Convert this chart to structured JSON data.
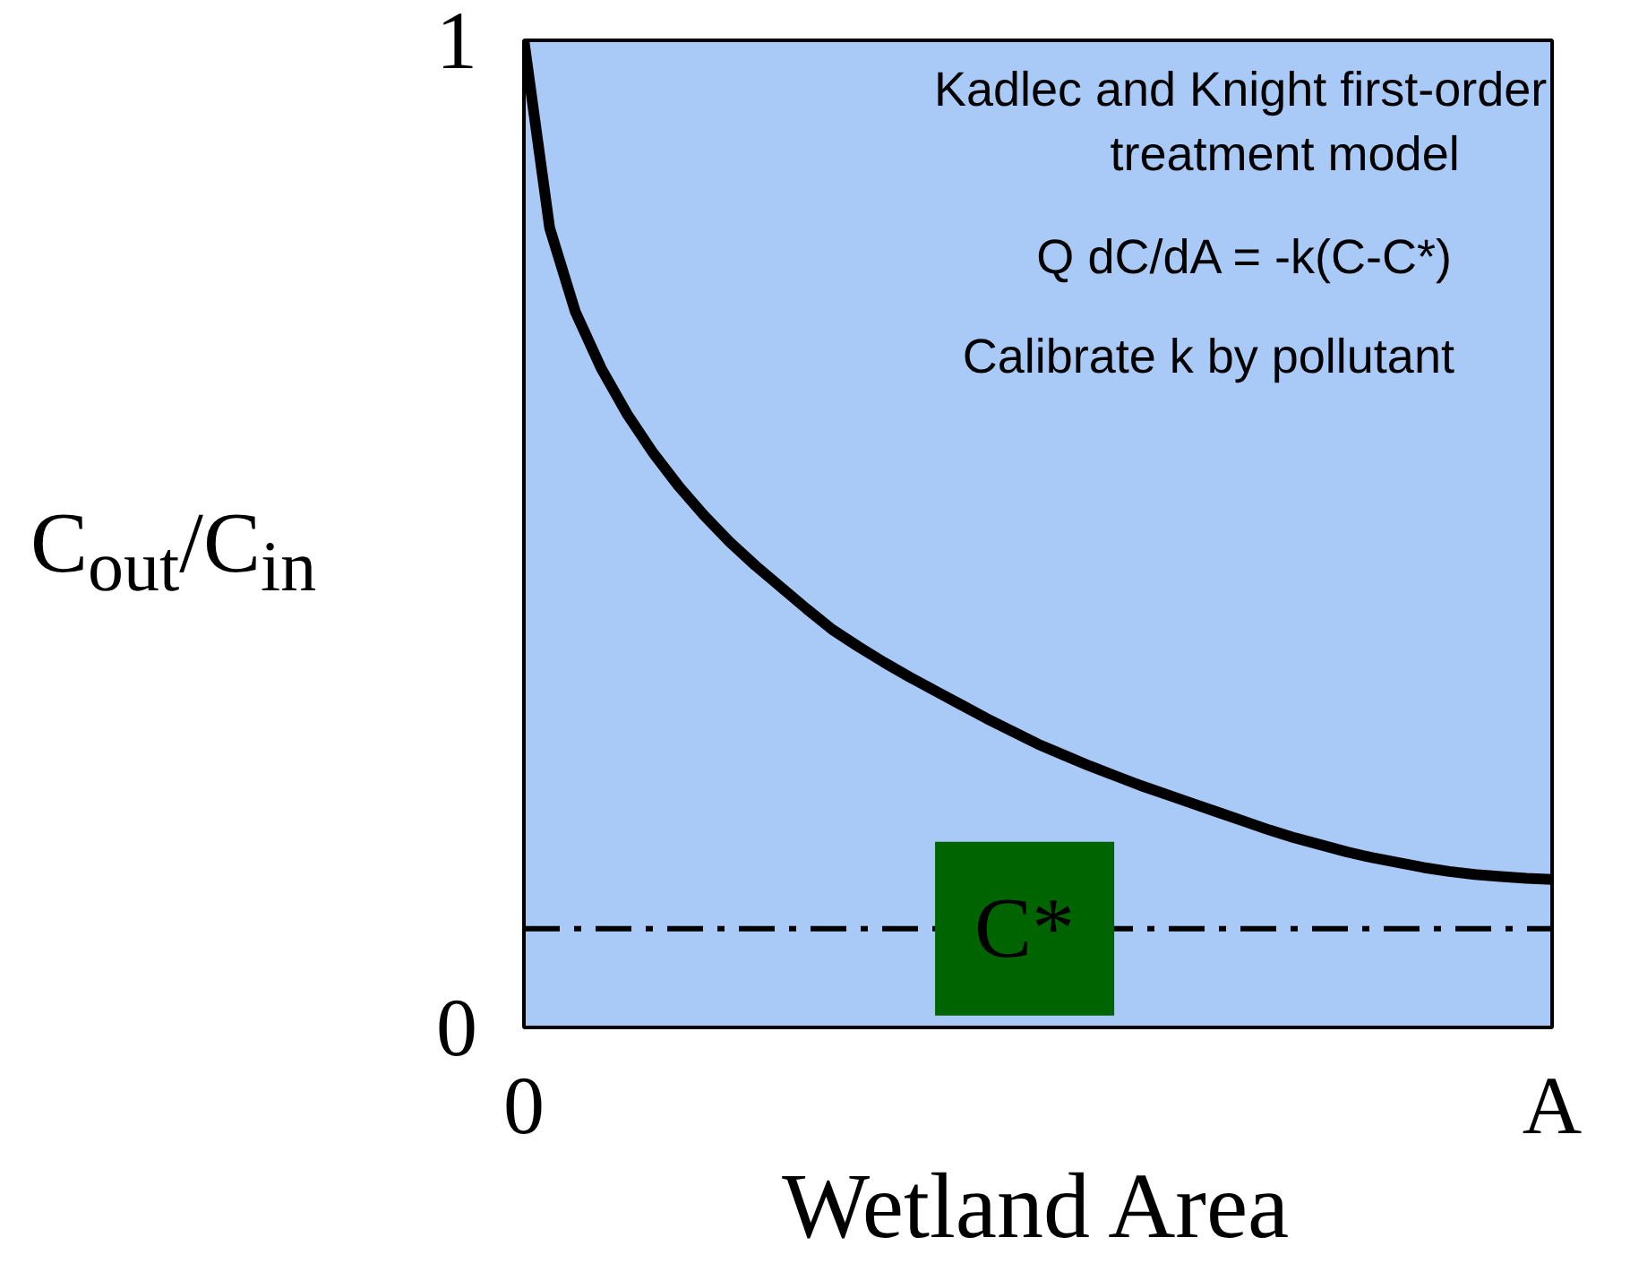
{
  "chart_data": {
    "type": "line",
    "xlabel": "Wetland Area",
    "ylabel": "C$_{out}$/C$_{in}$",
    "categories": [
      "0",
      null,
      null,
      null,
      null,
      null,
      null,
      null,
      null,
      null,
      null,
      null,
      null,
      null,
      null,
      null,
      null,
      null,
      null,
      null,
      null,
      null,
      null,
      null,
      null,
      null,
      null,
      null,
      null,
      null,
      null,
      null,
      null,
      null,
      null,
      null,
      null,
      null,
      null,
      null,
      "A"
    ],
    "series": [
      {
        "color": "#000000",
        "values": [
          1,
          0.81,
          0.725,
          0.668,
          0.622,
          0.583,
          0.549,
          0.519,
          0.492,
          0.468,
          0.446,
          0.424,
          0.403,
          0.386,
          0.37,
          0.355,
          0.341,
          0.327,
          0.313,
          0.3,
          0.287,
          0.276,
          0.265,
          0.255,
          0.245,
          0.236,
          0.227,
          0.218,
          0.209,
          0.2,
          0.192,
          0.185,
          0.178,
          0.172,
          0.167,
          0.162,
          0.158,
          0.155,
          0.153,
          0.151,
          0.15
        ]
      }
    ],
    "ylim": [
      0,
      1
    ],
    "yticks": [
      0,
      1
    ],
    "ref_lines": [
      {
        "axis": "y",
        "value": 0.1,
        "label": "C*",
        "color": "#000000",
        "line_style": "dashdot"
      }
    ],
    "annotations": [
      "Kadlec and Knight first-order",
      "treatment model",
      "Q dC/dA = -k(C-C*)",
      "Calibrate k by pollutant"
    ],
    "marker": "none",
    "line_style": "solid"
  }
}
